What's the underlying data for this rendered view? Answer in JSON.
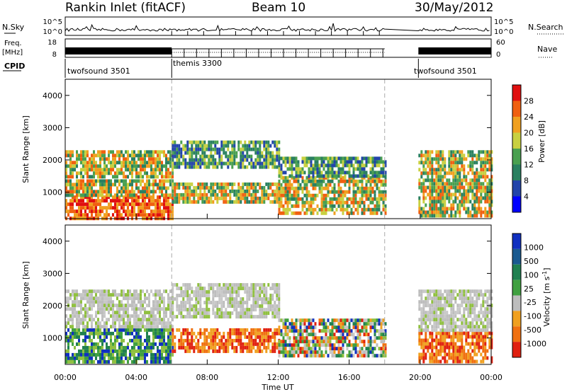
{
  "header": {
    "station": "Rankin Inlet (fitACF)",
    "beam": "Beam 10",
    "date": "30/May/2012"
  },
  "summary_panels": {
    "nsky_label": "N.Sky",
    "nsky_ticks": [
      "10^5",
      "10^0"
    ],
    "nsearch_label": "N.Search",
    "nsearch_ticks": [
      "10^5",
      "10^0"
    ],
    "freq_label": "Freq.",
    "freq_unit": "[MHz]",
    "freq_ticks": [
      "18",
      "8"
    ],
    "nave_label": "Nave",
    "nave_ticks": [
      "60",
      "0"
    ],
    "cpid_label": "CPID",
    "cpid_segments": [
      {
        "name": "twofsound 3501",
        "start_h": 0,
        "end_h": 6
      },
      {
        "name": "themis 3300",
        "start_h": 6,
        "end_h": 18
      },
      {
        "name": "twofsound 3501",
        "start_h": 19.9,
        "end_h": 24
      }
    ],
    "gaps_h": [
      [
        18.0,
        19.9
      ]
    ]
  },
  "chart_data": [
    {
      "type": "heatmap",
      "name": "power",
      "ylabel": "Slant Range [km]",
      "ylim": [
        180,
        4500
      ],
      "yticks": [
        1000,
        2000,
        3000,
        4000
      ],
      "xlim": [
        0,
        24
      ],
      "colorbar": {
        "label": "Power [dB]",
        "range": [
          0,
          32
        ],
        "ticks": [
          "28",
          "24",
          "20",
          "16",
          "12",
          "8",
          "4"
        ]
      },
      "bands": [
        {
          "t0": 0,
          "t1": 6,
          "r0": 200,
          "r1": 900,
          "level": "high"
        },
        {
          "t0": 0,
          "t1": 6,
          "r0": 900,
          "r1": 1400,
          "level": "mid"
        },
        {
          "t0": 0,
          "t1": 6,
          "r0": 1500,
          "r1": 2300,
          "level": "mid"
        },
        {
          "t0": 6,
          "t1": 12,
          "r0": 700,
          "r1": 1300,
          "level": "mid"
        },
        {
          "t0": 6,
          "t1": 12,
          "r0": 1800,
          "r1": 2600,
          "level": "low"
        },
        {
          "t0": 12,
          "t1": 18,
          "r0": 400,
          "r1": 1500,
          "level": "mid"
        },
        {
          "t0": 12,
          "t1": 18,
          "r0": 1500,
          "r1": 2100,
          "level": "low"
        },
        {
          "t0": 19.9,
          "t1": 24,
          "r0": 300,
          "r1": 1200,
          "level": "mid"
        },
        {
          "t0": 19.9,
          "t1": 24,
          "r0": 1300,
          "r1": 2300,
          "level": "mid"
        }
      ]
    },
    {
      "type": "heatmap",
      "name": "velocity",
      "ylabel": "Slant Range [km]",
      "ylim": [
        180,
        4500
      ],
      "yticks": [
        1000,
        2000,
        3000,
        4000
      ],
      "xlim": [
        0,
        24
      ],
      "xlabel": "Time UT",
      "xticks": [
        "00:00",
        "04:00",
        "08:00",
        "12:00",
        "16:00",
        "20:00",
        "00:00"
      ],
      "colorbar": {
        "label": "Velocity [m s",
        "label_sup": "-1",
        "label_end": "]",
        "ticks": [
          "1000",
          "500",
          "100",
          "25",
          "-25",
          "-100",
          "-500",
          "-1000"
        ]
      },
      "bands": [
        {
          "t0": 0,
          "t1": 6,
          "r0": 300,
          "r1": 1300,
          "level": "pos"
        },
        {
          "t0": 0,
          "t1": 6,
          "r0": 1300,
          "r1": 2500,
          "level": "zero"
        },
        {
          "t0": 6,
          "t1": 12,
          "r0": 600,
          "r1": 1300,
          "level": "neg"
        },
        {
          "t0": 6,
          "t1": 12,
          "r0": 1700,
          "r1": 2700,
          "level": "zero"
        },
        {
          "t0": 12,
          "t1": 18,
          "r0": 400,
          "r1": 1600,
          "level": "mixed"
        },
        {
          "t0": 19.9,
          "t1": 24,
          "r0": 300,
          "r1": 1200,
          "level": "neg"
        },
        {
          "t0": 19.9,
          "t1": 24,
          "r0": 1200,
          "r1": 2500,
          "level": "zero"
        }
      ]
    }
  ]
}
